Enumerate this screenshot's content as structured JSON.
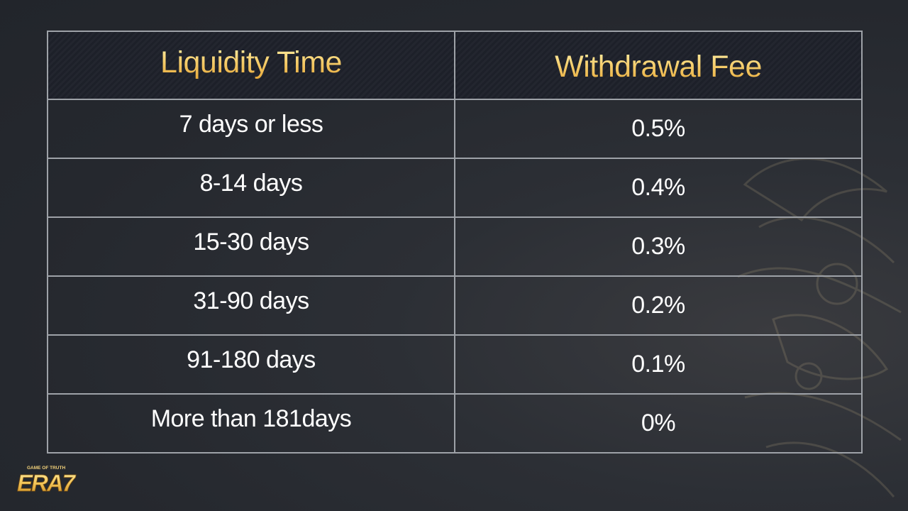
{
  "table": {
    "headers": [
      "Liquidity Time",
      "Withdrawal Fee"
    ],
    "rows": [
      {
        "time": "7 days or less",
        "fee": "0.5%"
      },
      {
        "time": "8-14 days",
        "fee": "0.4%"
      },
      {
        "time": "15-30 days",
        "fee": "0.3%"
      },
      {
        "time": "31-90 days",
        "fee": "0.2%"
      },
      {
        "time": "91-180 days",
        "fee": "0.1%"
      },
      {
        "time": "More than 181days",
        "fee": "0%"
      }
    ]
  },
  "logo": {
    "tagline": "GAME OF TRUTH",
    "wordmark": "ERA7"
  },
  "colors": {
    "header_text": "#f6cf6e",
    "body_text": "#ffffff",
    "border": "#9ea2a8",
    "background": "#25282e"
  }
}
